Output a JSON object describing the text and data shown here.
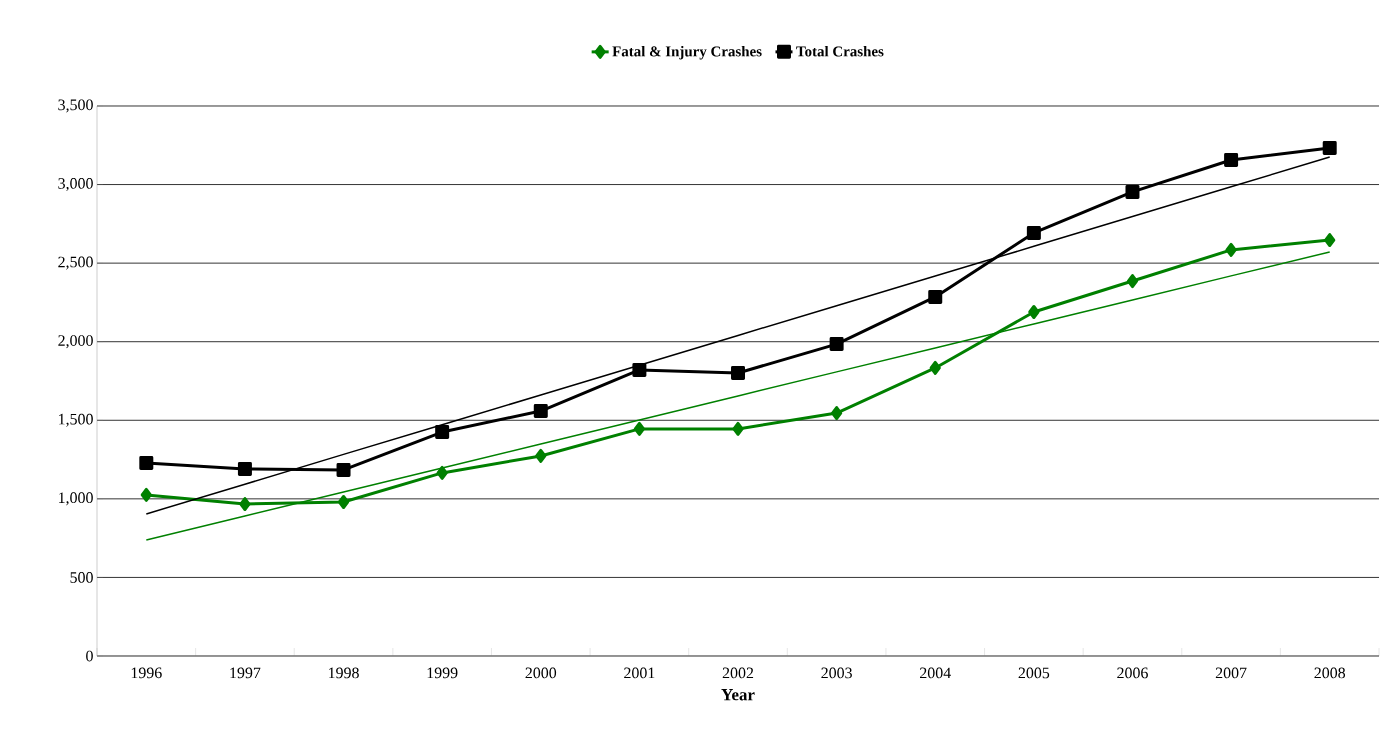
{
  "chart_data": {
    "type": "line",
    "xlabel": "Year",
    "categories": [
      "1996",
      "1997",
      "1998",
      "1999",
      "2000",
      "2001",
      "2002",
      "2003",
      "2004",
      "2005",
      "2006",
      "2007",
      "2008"
    ],
    "series": [
      {
        "name": "Fatal & Injury Crashes",
        "color": "#008000",
        "marker": "diamond",
        "values": [
          1025,
          967,
          980,
          1165,
          1273,
          1445,
          1445,
          1546,
          1833,
          2189,
          2386,
          2584,
          2647
        ]
      },
      {
        "name": "Total Crashes",
        "color": "#000000",
        "marker": "square",
        "values": [
          1228,
          1190,
          1184,
          1425,
          1559,
          1820,
          1801,
          1985,
          2285,
          2692,
          2953,
          3156,
          3233
        ]
      },
      {
        "type": "line",
        "color": "#008000",
        "marker": "none",
        "values": [
          738,
          891,
          1044,
          1196,
          1349,
          1502,
          1655,
          1808,
          1960,
          2113,
          2266,
          2419,
          2571
        ]
      },
      {
        "type": "line",
        "color": "#000000",
        "marker": "none",
        "values": [
          904,
          1093,
          1283,
          1472,
          1661,
          1850,
          2040,
          2229,
          2418,
          2607,
          2797,
          2986,
          3175
        ]
      }
    ],
    "ylim": [
      0,
      3500
    ],
    "yticks": [
      {
        "value": 0,
        "label": "0"
      },
      {
        "value": 500,
        "label": "500"
      },
      {
        "value": 1000,
        "label": "1,000"
      },
      {
        "value": 1500,
        "label": "1,500"
      },
      {
        "value": 2000,
        "label": "2,000"
      },
      {
        "value": 2500,
        "label": "2,500"
      },
      {
        "value": 3000,
        "label": "3,000"
      },
      {
        "value": 3500,
        "label": "3,500"
      }
    ],
    "grid": "y",
    "legend": "top",
    "line_style": "solid"
  }
}
